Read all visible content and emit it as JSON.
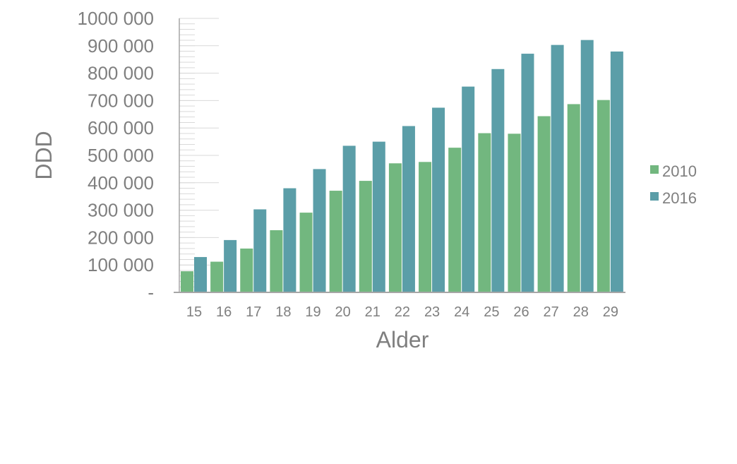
{
  "chart_data": {
    "type": "bar",
    "xlabel": "Alder",
    "ylabel": "DDD",
    "ylim": [
      0,
      1000000
    ],
    "y_ticks": [
      {
        "value": 0,
        "label": "-"
      },
      {
        "value": 100000,
        "label": "100 000"
      },
      {
        "value": 200000,
        "label": "200 000"
      },
      {
        "value": 300000,
        "label": "300 000"
      },
      {
        "value": 400000,
        "label": "400 000"
      },
      {
        "value": 500000,
        "label": "500 000"
      },
      {
        "value": 600000,
        "label": "600 000"
      },
      {
        "value": 700000,
        "label": "700 000"
      },
      {
        "value": 800000,
        "label": "800 000"
      },
      {
        "value": 900000,
        "label": "900 000"
      },
      {
        "value": 1000000,
        "label": "1000 000"
      }
    ],
    "categories": [
      "15",
      "16",
      "17",
      "18",
      "19",
      "20",
      "21",
      "22",
      "23",
      "24",
      "25",
      "26",
      "27",
      "28",
      "29"
    ],
    "series": [
      {
        "name": "2010",
        "color": "#72b77f",
        "values": [
          77000,
          112000,
          160000,
          227000,
          291000,
          371000,
          407000,
          471000,
          476000,
          528000,
          581000,
          579000,
          643000,
          687000,
          702000
        ]
      },
      {
        "name": "2016",
        "color": "#5b9ea8",
        "values": [
          129000,
          191000,
          303000,
          380000,
          450000,
          535000,
          550000,
          607000,
          674000,
          751000,
          815000,
          871000,
          903000,
          921000,
          879000
        ]
      }
    ],
    "grid": false,
    "legend_position": "right"
  }
}
